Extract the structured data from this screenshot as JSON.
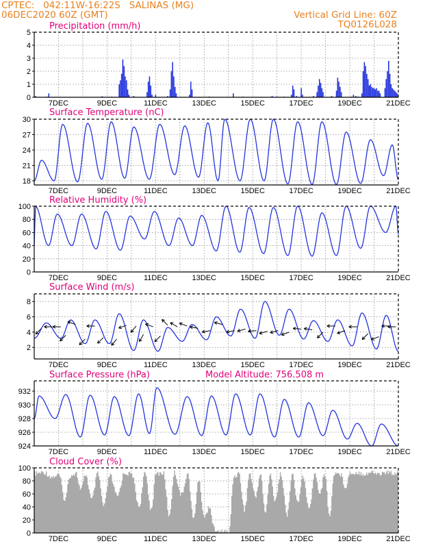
{
  "header": {
    "line1_left": "CPTEC:   042:11W-16:22S   SALINAS (MG)",
    "line2_left": "06DEC2020 60Z (GMT)",
    "line2_right": "Vertical Grid Line: 60Z",
    "line3_right": "TQ0126L028"
  },
  "colors": {
    "header": "#e8801e",
    "panel_title": "#e0007a",
    "series": "#2233dd",
    "cloud": "#a9a9a9",
    "arrow": "#000000"
  },
  "chart_data": [
    {
      "type": "bar",
      "title": "Precipitation (mm/h)",
      "ylim": [
        0,
        5
      ],
      "yticks": [
        0,
        1,
        2,
        3,
        4,
        5
      ],
      "xticks": [
        "7DEC",
        "9DEC",
        "11DEC",
        "13DEC",
        "15DEC",
        "17DEC",
        "19DEC",
        "21DEC"
      ],
      "x_start_day": 6.0,
      "x_end_day": 21.0,
      "bars": [
        [
          6.05,
          0.1
        ],
        [
          6.5,
          0.05
        ],
        [
          6.6,
          0.3
        ],
        [
          8.8,
          0.08
        ],
        [
          9.2,
          0.05
        ],
        [
          9.5,
          1.0
        ],
        [
          9.55,
          1.3
        ],
        [
          9.6,
          1.8
        ],
        [
          9.65,
          2.9
        ],
        [
          9.7,
          2.4
        ],
        [
          9.75,
          1.6
        ],
        [
          9.8,
          1.3
        ],
        [
          9.85,
          0.6
        ],
        [
          9.9,
          0.2
        ],
        [
          10.1,
          0.1
        ],
        [
          10.65,
          0.4
        ],
        [
          10.7,
          1.2
        ],
        [
          10.75,
          1.6
        ],
        [
          10.8,
          0.9
        ],
        [
          10.85,
          0.2
        ],
        [
          11.0,
          0.2
        ],
        [
          11.5,
          0.1
        ],
        [
          11.6,
          0.6
        ],
        [
          11.65,
          2.0
        ],
        [
          11.7,
          2.7
        ],
        [
          11.75,
          1.6
        ],
        [
          11.8,
          0.8
        ],
        [
          11.85,
          0.3
        ],
        [
          12.4,
          0.2
        ],
        [
          12.45,
          1.2
        ],
        [
          12.5,
          0.6
        ],
        [
          13.2,
          0.05
        ],
        [
          14.2,
          0.3
        ],
        [
          14.6,
          0.05
        ],
        [
          15.8,
          0.1
        ],
        [
          16.0,
          0.05
        ],
        [
          16.3,
          0.05
        ],
        [
          16.6,
          0.2
        ],
        [
          16.65,
          0.9
        ],
        [
          16.7,
          0.6
        ],
        [
          16.8,
          0.1
        ],
        [
          17.0,
          0.7
        ],
        [
          17.05,
          0.2
        ],
        [
          17.5,
          0.1
        ],
        [
          17.65,
          0.4
        ],
        [
          17.7,
          0.9
        ],
        [
          17.75,
          1.4
        ],
        [
          17.8,
          1.1
        ],
        [
          17.85,
          0.7
        ],
        [
          17.9,
          0.4
        ],
        [
          18.25,
          0.1
        ],
        [
          18.45,
          0.5
        ],
        [
          18.5,
          1.5
        ],
        [
          18.55,
          1.2
        ],
        [
          18.6,
          0.8
        ],
        [
          18.65,
          0.4
        ],
        [
          19.05,
          0.05
        ],
        [
          19.15,
          0.2
        ],
        [
          19.25,
          0.1
        ],
        [
          19.35,
          0.05
        ],
        [
          19.5,
          0.3
        ],
        [
          19.55,
          2.0
        ],
        [
          19.6,
          2.7
        ],
        [
          19.65,
          2.4
        ],
        [
          19.7,
          1.8
        ],
        [
          19.75,
          1.4
        ],
        [
          19.8,
          0.9
        ],
        [
          19.85,
          1.0
        ],
        [
          19.9,
          0.8
        ],
        [
          19.95,
          0.7
        ],
        [
          20.0,
          0.7
        ],
        [
          20.05,
          0.6
        ],
        [
          20.1,
          0.7
        ],
        [
          20.15,
          0.5
        ],
        [
          20.2,
          0.5
        ],
        [
          20.25,
          0.3
        ],
        [
          20.45,
          0.7
        ],
        [
          20.5,
          1.4
        ],
        [
          20.55,
          2.0
        ],
        [
          20.6,
          2.8
        ],
        [
          20.65,
          1.8
        ],
        [
          20.7,
          1.0
        ],
        [
          20.75,
          0.7
        ],
        [
          20.8,
          0.6
        ],
        [
          20.85,
          0.5
        ],
        [
          20.9,
          0.4
        ],
        [
          20.95,
          0.3
        ]
      ]
    },
    {
      "type": "line",
      "title": "Surface Temperature (nC)",
      "ylim": [
        17.2,
        30
      ],
      "yticks": [
        18,
        21,
        24,
        27,
        30
      ],
      "xticks": [
        "7DEC",
        "9DEC",
        "11DEC",
        "13DEC",
        "15DEC",
        "17DEC",
        "19DEC",
        "21DEC"
      ],
      "cycle": {
        "start_day": 6.0,
        "end_day": 21.0,
        "max_times": [
          6.3,
          7.17,
          8.2,
          9.17,
          10.1,
          11.17,
          12.2,
          13.15,
          13.85,
          14.9,
          15.85,
          16.85,
          17.85,
          18.85,
          19.85,
          20.75
        ],
        "max_values": [
          22,
          29.0,
          29.2,
          29.5,
          28.5,
          29.0,
          28.7,
          29.3,
          30.0,
          30.0,
          30.0,
          29.5,
          29.5,
          27.5,
          26.0,
          25.0
        ],
        "min_values": [
          18.0,
          17.8,
          18.3,
          18.5,
          18.3,
          19.2,
          18.7,
          18.0,
          18.0,
          18.0,
          17.4,
          17.3,
          17.3,
          17.5,
          19.0,
          18.2
        ]
      }
    },
    {
      "type": "line",
      "title": "Relative Humidity (%)",
      "ylim": [
        0,
        100
      ],
      "yticks": [
        0,
        20,
        40,
        60,
        80,
        100
      ],
      "xticks": [
        "7DEC",
        "9DEC",
        "11DEC",
        "13DEC",
        "15DEC",
        "17DEC",
        "19DEC",
        "21DEC"
      ],
      "cycle": {
        "start_day": 6.0,
        "end_day": 21.0,
        "max_times": [
          6.05,
          6.95,
          7.95,
          8.95,
          9.95,
          10.95,
          11.95,
          12.9,
          13.9,
          14.85,
          15.85,
          16.85,
          17.85,
          18.85,
          19.85,
          20.9
        ],
        "max_values": [
          100,
          88,
          88,
          92,
          85,
          92,
          82,
          86,
          100,
          98,
          98,
          100,
          90,
          100,
          100,
          100
        ],
        "min_values": [
          40,
          40,
          35,
          33,
          50,
          40,
          40,
          32,
          30,
          28,
          25,
          24,
          25,
          36,
          60,
          57
        ]
      }
    },
    {
      "type": "line",
      "title": "Surface Wind (m/s)",
      "ylim": [
        0.5,
        9
      ],
      "yticks": [
        2,
        4,
        6,
        8
      ],
      "xticks": [
        "7DEC",
        "9DEC",
        "11DEC",
        "13DEC",
        "15DEC",
        "17DEC",
        "19DEC",
        "21DEC"
      ],
      "cycle": {
        "start_day": 6.0,
        "end_day": 21.0,
        "max_times": [
          6.5,
          7.5,
          8.5,
          9.5,
          10.5,
          11.5,
          12.5,
          13.5,
          14.5,
          15.5,
          16.5,
          17.5,
          18.5,
          19.5,
          20.5
        ],
        "max_values": [
          5.2,
          5.6,
          5.6,
          6.4,
          5.6,
          4.6,
          5.0,
          6.0,
          7.0,
          8.0,
          7.0,
          5.5,
          5.6,
          6.5,
          6.2
        ],
        "min_values": [
          3.2,
          2.5,
          2.5,
          1.6,
          1.5,
          2.8,
          3.0,
          3.5,
          3.2,
          3.6,
          3.1,
          2.8,
          2.2,
          1.8,
          1.5
        ]
      },
      "arrows": [
        [
          6.3,
          4.5,
          225
        ],
        [
          6.75,
          4.7,
          180
        ],
        [
          7.1,
          4.7,
          180
        ],
        [
          7.3,
          3.6,
          225
        ],
        [
          7.7,
          5.0,
          160
        ],
        [
          8.1,
          3.1,
          225
        ],
        [
          8.5,
          4.8,
          180
        ],
        [
          8.85,
          3.3,
          225
        ],
        [
          9.4,
          3.1,
          230
        ],
        [
          9.8,
          4.9,
          200
        ],
        [
          10.2,
          4.8,
          230
        ],
        [
          10.5,
          3.7,
          240
        ],
        [
          10.9,
          4.7,
          160
        ],
        [
          11.2,
          3.5,
          225
        ],
        [
          11.5,
          4.9,
          135
        ],
        [
          11.9,
          4.7,
          150
        ],
        [
          12.3,
          4.8,
          160
        ],
        [
          12.75,
          4.5,
          170
        ],
        [
          13.25,
          4.2,
          190
        ],
        [
          13.75,
          5.0,
          165
        ],
        [
          14.25,
          4.2,
          190
        ],
        [
          14.7,
          4.4,
          195
        ],
        [
          15.15,
          4.2,
          185
        ],
        [
          15.6,
          4.1,
          195
        ],
        [
          16.05,
          4.2,
          195
        ],
        [
          16.5,
          4.0,
          200
        ],
        [
          17.0,
          4.4,
          175
        ],
        [
          17.45,
          4.3,
          170
        ],
        [
          17.9,
          4.0,
          225
        ],
        [
          18.4,
          4.8,
          180
        ],
        [
          18.8,
          4.2,
          200
        ],
        [
          19.3,
          4.7,
          180
        ],
        [
          19.75,
          3.8,
          225
        ],
        [
          20.2,
          3.4,
          200
        ],
        [
          20.65,
          4.8,
          180
        ],
        [
          20.9,
          4.7,
          180
        ]
      ]
    },
    {
      "type": "line",
      "title": "Surface Pressure (hPa)",
      "subtitle": "Model Altitude: 756.508 m",
      "ylim": [
        924,
        933.5
      ],
      "yticks": [
        924,
        926,
        928,
        930,
        932
      ],
      "xticks": [
        "7DEC",
        "9DEC",
        "11DEC",
        "13DEC",
        "15DEC",
        "17DEC",
        "19DEC",
        "21DEC"
      ],
      "cycle": {
        "start_day": 6.0,
        "end_day": 21.0,
        "max_times": [
          6.2,
          7.3,
          8.3,
          9.3,
          10.3,
          11.05,
          12.3,
          13.3,
          14.3,
          15.3,
          16.3,
          17.3,
          18.3,
          19.3,
          20.3
        ],
        "max_values": [
          931.3,
          931.5,
          931.4,
          931.2,
          931.6,
          932.5,
          931.2,
          931.3,
          931.6,
          931.6,
          930.8,
          930.3,
          929.2,
          927.3,
          927.2
        ],
        "min_values": [
          928.0,
          925.3,
          925.6,
          925.5,
          925.8,
          925.7,
          925.5,
          925.6,
          925.6,
          925.3,
          925.3,
          925.5,
          925.0,
          924.0,
          924.0
        ]
      }
    },
    {
      "type": "area",
      "title": "Cloud Cover (%)",
      "ylim": [
        0,
        100
      ],
      "yticks": [
        0,
        20,
        40,
        60,
        80,
        100
      ],
      "xticks": [
        "7DEC",
        "9DEC",
        "11DEC",
        "13DEC",
        "15DEC",
        "17DEC",
        "19DEC",
        "21DEC"
      ],
      "profile": [
        [
          6.0,
          95
        ],
        [
          6.4,
          97
        ],
        [
          6.7,
          90
        ],
        [
          7.0,
          93
        ],
        [
          7.25,
          55
        ],
        [
          7.45,
          92
        ],
        [
          7.7,
          96
        ],
        [
          7.9,
          70
        ],
        [
          8.1,
          94
        ],
        [
          8.35,
          55
        ],
        [
          8.6,
          95
        ],
        [
          8.85,
          45
        ],
        [
          9.1,
          93
        ],
        [
          9.4,
          60
        ],
        [
          9.7,
          96
        ],
        [
          10.0,
          94
        ],
        [
          10.3,
          45
        ],
        [
          10.55,
          96
        ],
        [
          10.8,
          40
        ],
        [
          11.0,
          95
        ],
        [
          11.3,
          96
        ],
        [
          11.55,
          30
        ],
        [
          11.75,
          97
        ],
        [
          12.05,
          62
        ],
        [
          12.3,
          95
        ],
        [
          12.55,
          25
        ],
        [
          12.75,
          85
        ],
        [
          13.0,
          28
        ],
        [
          13.2,
          45
        ],
        [
          13.4,
          10
        ],
        [
          13.6,
          5
        ],
        [
          13.85,
          8
        ],
        [
          14.0,
          3
        ],
        [
          14.2,
          90
        ],
        [
          14.4,
          96
        ],
        [
          14.65,
          40
        ],
        [
          14.85,
          95
        ],
        [
          15.1,
          60
        ],
        [
          15.3,
          95
        ],
        [
          15.5,
          35
        ],
        [
          15.7,
          93
        ],
        [
          15.9,
          55
        ],
        [
          16.15,
          95
        ],
        [
          16.4,
          30
        ],
        [
          16.6,
          94
        ],
        [
          16.85,
          50
        ],
        [
          17.05,
          92
        ],
        [
          17.3,
          40
        ],
        [
          17.55,
          95
        ],
        [
          17.75,
          65
        ],
        [
          17.95,
          94
        ],
        [
          18.15,
          30
        ],
        [
          18.35,
          97
        ],
        [
          18.6,
          94
        ],
        [
          18.8,
          75
        ],
        [
          19.0,
          96
        ],
        [
          19.3,
          97
        ],
        [
          19.6,
          95
        ],
        [
          19.9,
          97
        ],
        [
          20.2,
          95
        ],
        [
          20.5,
          97
        ],
        [
          20.8,
          96
        ],
        [
          21.0,
          98
        ]
      ]
    }
  ]
}
